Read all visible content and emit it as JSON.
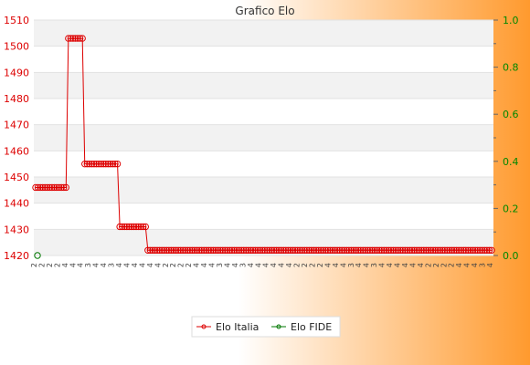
{
  "chart_data": {
    "type": "line",
    "title": "Grafico Elo",
    "background": {
      "left": "#ffffff",
      "right": "#ff9a2e"
    },
    "plot_bands": [
      "#ffffff",
      "#f2f2f2"
    ],
    "y_left": {
      "ticks": [
        "1420",
        "1430",
        "1440",
        "1450",
        "1460",
        "1470",
        "1480",
        "1490",
        "1500",
        "1510"
      ],
      "ylim": [
        1420,
        1510
      ],
      "color": "#dd0000"
    },
    "y_right": {
      "ticks": [
        "0.0",
        "0.2",
        "0.4",
        "0.6",
        "0.8",
        "1.0"
      ],
      "ylim": [
        0,
        1
      ],
      "color": "#008800"
    },
    "series": [
      {
        "name": "Elo Italia",
        "color": "#dd0000",
        "segments": [
          {
            "value": 1446,
            "count": 14
          },
          {
            "value": 1503,
            "count": 7
          },
          {
            "value": 1455,
            "count": 15
          },
          {
            "value": 1431,
            "count": 12
          },
          {
            "value": 1422,
            "count": 148
          }
        ]
      },
      {
        "name": "Elo FIDE",
        "color": "#007700",
        "values": [
          0
        ]
      }
    ],
    "x_tick_labels": [
      "2",
      "2",
      "2",
      "2",
      "4",
      "4",
      "4",
      "3",
      "4",
      "4",
      "3",
      "4",
      "4",
      "4",
      "4",
      "4",
      "4"
    ],
    "legend": "bottom-center"
  }
}
